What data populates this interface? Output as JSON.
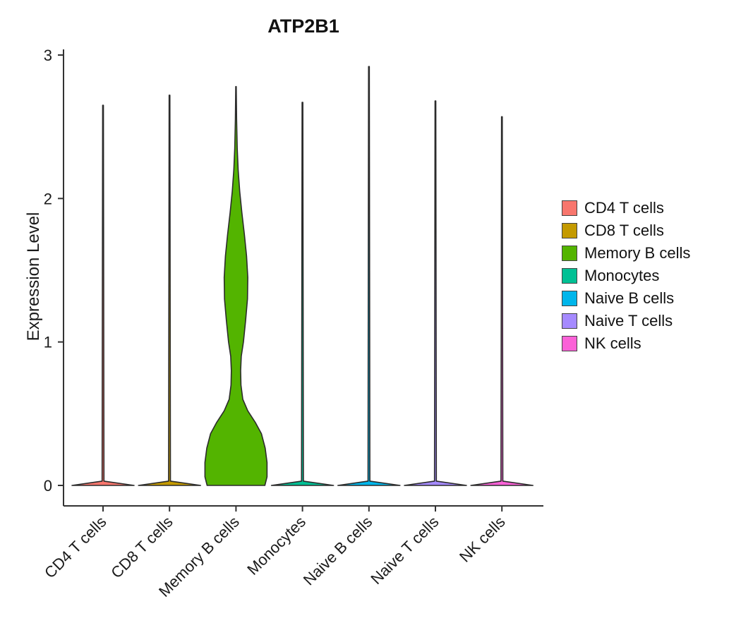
{
  "chart_data": {
    "type": "violin",
    "title": "ATP2B1",
    "ylabel": "Expression Level",
    "ylim": [
      0,
      3
    ],
    "yticks": [
      0,
      1,
      2,
      3
    ],
    "categories": [
      "CD4 T cells",
      "CD8 T cells",
      "Memory B cells",
      "Monocytes",
      "Naive B cells",
      "Naive T cells",
      "NK cells"
    ],
    "legend_position": "right",
    "series": [
      {
        "name": "CD4 T cells",
        "color": "#F8766D",
        "max_expression": 2.65,
        "profile": [
          [
            0,
            1.0
          ],
          [
            0.03,
            0.03
          ],
          [
            2.65,
            0.012
          ]
        ]
      },
      {
        "name": "CD8 T cells",
        "color": "#C49A00",
        "max_expression": 2.72,
        "profile": [
          [
            0,
            1.0
          ],
          [
            0.03,
            0.03
          ],
          [
            2.72,
            0.012
          ]
        ]
      },
      {
        "name": "Memory B cells",
        "color": "#53B400",
        "max_expression": 2.78,
        "profile": [
          [
            0,
            0.93
          ],
          [
            0.06,
            1.0
          ],
          [
            0.16,
            1.0
          ],
          [
            0.26,
            0.94
          ],
          [
            0.36,
            0.82
          ],
          [
            0.44,
            0.62
          ],
          [
            0.52,
            0.38
          ],
          [
            0.6,
            0.22
          ],
          [
            0.7,
            0.16
          ],
          [
            0.8,
            0.15
          ],
          [
            0.9,
            0.17
          ],
          [
            1.0,
            0.24
          ],
          [
            1.15,
            0.31
          ],
          [
            1.3,
            0.37
          ],
          [
            1.45,
            0.38
          ],
          [
            1.6,
            0.34
          ],
          [
            1.75,
            0.27
          ],
          [
            1.9,
            0.19
          ],
          [
            2.05,
            0.12
          ],
          [
            2.2,
            0.07
          ],
          [
            2.35,
            0.04
          ],
          [
            2.55,
            0.02
          ],
          [
            2.78,
            0.008
          ]
        ]
      },
      {
        "name": "Monocytes",
        "color": "#00C094",
        "max_expression": 2.67,
        "profile": [
          [
            0,
            1.0
          ],
          [
            0.03,
            0.03
          ],
          [
            2.67,
            0.012
          ]
        ]
      },
      {
        "name": "Naive B cells",
        "color": "#00B6EB",
        "max_expression": 2.92,
        "profile": [
          [
            0,
            1.0
          ],
          [
            0.03,
            0.03
          ],
          [
            2.92,
            0.012
          ]
        ]
      },
      {
        "name": "Naive T cells",
        "color": "#A58AFF",
        "max_expression": 2.68,
        "profile": [
          [
            0,
            1.0
          ],
          [
            0.03,
            0.03
          ],
          [
            2.68,
            0.012
          ]
        ]
      },
      {
        "name": "NK cells",
        "color": "#FB61D7",
        "max_expression": 2.57,
        "profile": [
          [
            0,
            1.0
          ],
          [
            0.03,
            0.03
          ],
          [
            2.57,
            0.012
          ]
        ]
      }
    ],
    "colors": {
      "axis": "#333333",
      "tick_text": "#1a1a1a",
      "violin_stroke": "#2b2b2b"
    }
  }
}
